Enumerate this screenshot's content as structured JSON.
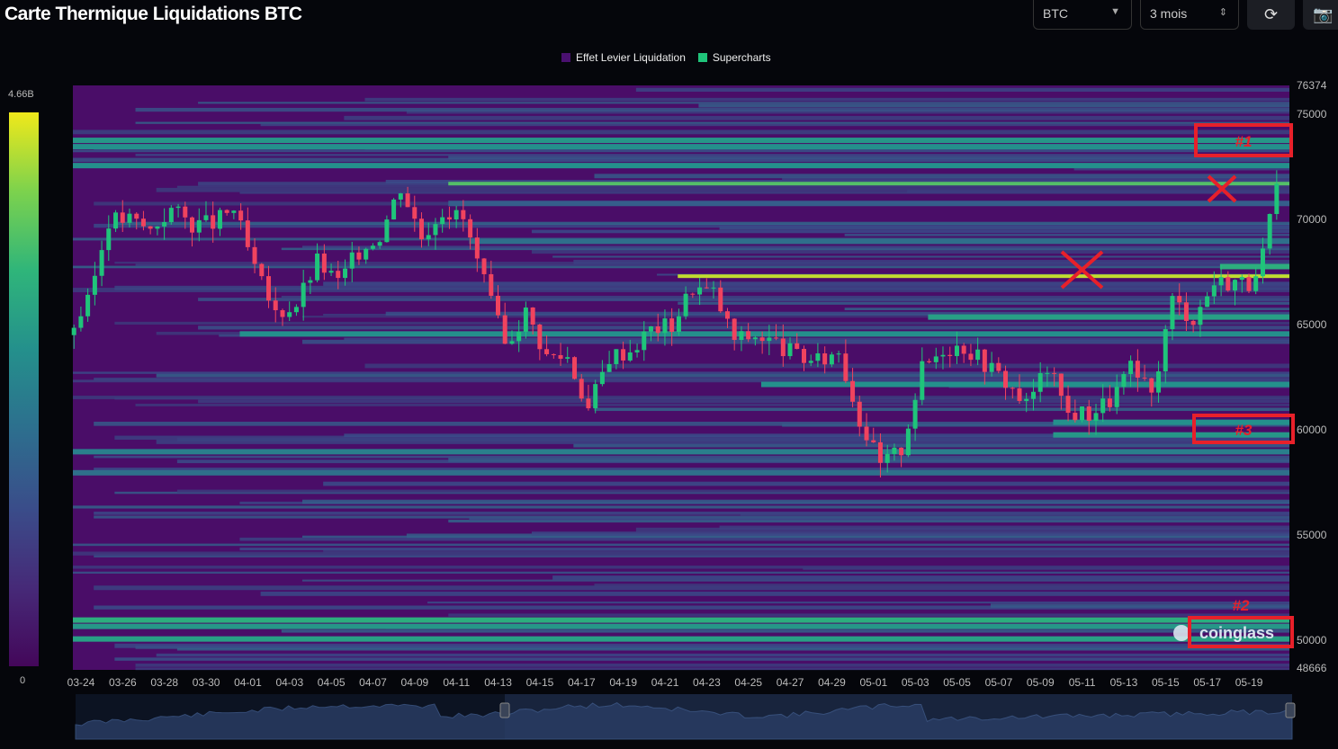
{
  "header": {
    "title": "Carte Thermique Liquidations BTC",
    "symbol_select": "BTC",
    "period_select": "3 mois",
    "refresh_icon": "refresh-icon",
    "camera_icon": "camera-icon"
  },
  "legend": [
    {
      "label": "Effet Levier Liquidation",
      "color": "#4a1070"
    },
    {
      "label": "Supercharts",
      "color": "#1fc47a"
    }
  ],
  "colorbar": {
    "max_label": "4.66B",
    "min_label": "0"
  },
  "watermark": "coinglass",
  "annotations": {
    "box1": "#1",
    "box2": "#2",
    "box3": "#3",
    "x_marks": 2
  },
  "chart_data": {
    "type": "heatmap",
    "overlay": "candlestick",
    "ylim": [
      48666,
      76374
    ],
    "y_ticks": [
      "76374",
      "75000",
      "70000",
      "65000",
      "60000",
      "55000",
      "50000",
      "48666"
    ],
    "x_ticks": [
      "03-24",
      "03-26",
      "03-28",
      "03-30",
      "04-01",
      "04-03",
      "04-05",
      "04-07",
      "04-09",
      "04-11",
      "04-13",
      "04-15",
      "04-17",
      "04-19",
      "04-21",
      "04-23",
      "04-25",
      "04-27",
      "04-29",
      "05-01",
      "05-03",
      "05-05",
      "05-07",
      "05-09",
      "05-11",
      "05-13",
      "05-15",
      "05-17",
      "05-19"
    ],
    "price_daily": {
      "dates": [
        "03-24",
        "03-25",
        "03-26",
        "03-27",
        "03-28",
        "03-29",
        "03-30",
        "03-31",
        "04-01",
        "04-02",
        "04-03",
        "04-04",
        "04-05",
        "04-06",
        "04-07",
        "04-08",
        "04-09",
        "04-10",
        "04-11",
        "04-12",
        "04-13",
        "04-14",
        "04-15",
        "04-16",
        "04-17",
        "04-18",
        "04-19",
        "04-20",
        "04-21",
        "04-22",
        "04-23",
        "04-24",
        "04-25",
        "04-26",
        "04-27",
        "04-28",
        "04-29",
        "04-30",
        "05-01",
        "05-02",
        "05-03",
        "05-04",
        "05-05",
        "05-06",
        "05-07",
        "05-08",
        "05-09",
        "05-10",
        "05-11",
        "05-12",
        "05-13",
        "05-14",
        "05-15",
        "05-16",
        "05-17",
        "05-18",
        "05-19",
        "05-20"
      ],
      "close": [
        66000,
        70000,
        70000,
        69500,
        70500,
        69800,
        69800,
        70500,
        67600,
        65500,
        66000,
        68000,
        67000,
        68500,
        69300,
        71600,
        69200,
        70500,
        70000,
        67000,
        64000,
        65600,
        63500,
        63500,
        61000,
        63500,
        63800,
        64800,
        65000,
        66800,
        66500,
        64300,
        64500,
        64100,
        63500,
        63200,
        63800,
        60500,
        58300,
        59100,
        62900,
        63900,
        64000,
        63200,
        62300,
        61200,
        63000,
        60800,
        60800,
        61400,
        62900,
        61600,
        66200,
        65300,
        67000,
        67100,
        66900,
        71400
      ]
    },
    "liquidation_levels": [
      {
        "price": 73800,
        "intensity": 0.55,
        "from": "03-24"
      },
      {
        "price": 73500,
        "intensity": 0.5,
        "from": "03-24"
      },
      {
        "price": 72600,
        "intensity": 0.5,
        "from": "03-24"
      },
      {
        "price": 71700,
        "intensity": 0.8,
        "from": "04-11"
      },
      {
        "price": 70800,
        "intensity": 0.35,
        "from": "04-11"
      },
      {
        "price": 69000,
        "intensity": 0.4,
        "from": "04-12"
      },
      {
        "price": 67300,
        "intensity": 0.95,
        "from": "04-22"
      },
      {
        "price": 67800,
        "intensity": 0.7,
        "from": "05-18"
      },
      {
        "price": 65400,
        "intensity": 0.6,
        "from": "05-04"
      },
      {
        "price": 64600,
        "intensity": 0.5,
        "from": "04-01"
      },
      {
        "price": 62200,
        "intensity": 0.5,
        "from": "04-26"
      },
      {
        "price": 60400,
        "intensity": 0.5,
        "from": "05-10"
      },
      {
        "price": 59800,
        "intensity": 0.55,
        "from": "05-10"
      },
      {
        "price": 59000,
        "intensity": 0.45,
        "from": "03-24"
      },
      {
        "price": 58000,
        "intensity": 0.4,
        "from": "03-24"
      },
      {
        "price": 51000,
        "intensity": 0.7,
        "from": "03-24"
      },
      {
        "price": 50700,
        "intensity": 0.55,
        "from": "03-24"
      },
      {
        "price": 50100,
        "intensity": 0.6,
        "from": "03-24"
      }
    ]
  }
}
